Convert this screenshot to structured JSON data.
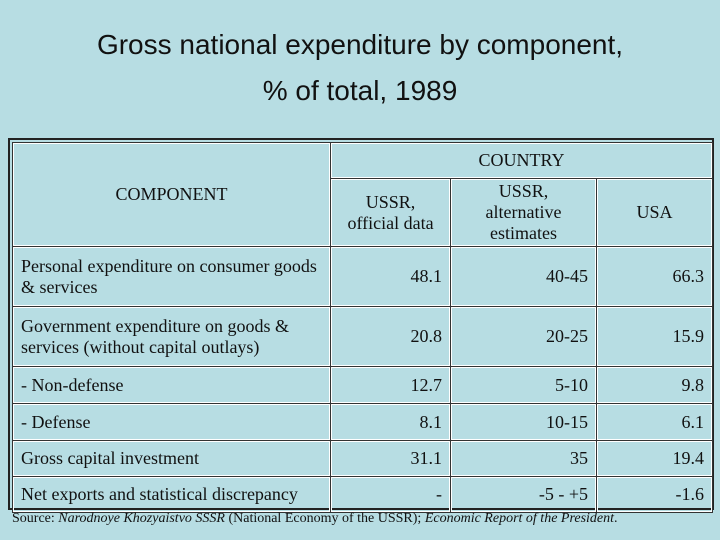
{
  "title": {
    "line1": "Gross national expenditure by component,",
    "line2": "% of total, 1989"
  },
  "table": {
    "country_header": "COUNTRY",
    "component_header": "COMPONENT",
    "columns": [
      "USSR, official data",
      "USSR, alternative estimates",
      "USA"
    ],
    "column_lines": [
      [
        "USSR,",
        "official data"
      ],
      [
        "USSR, alternative",
        "estimates"
      ],
      [
        "USA"
      ]
    ],
    "rows": [
      {
        "component": "Personal expenditure on consumer goods & services",
        "values": [
          "48.1",
          "40-45",
          "66.3"
        ]
      },
      {
        "component": "Government expenditure on goods & services (without capital outlays)",
        "values": [
          "20.8",
          "20-25",
          "15.9"
        ]
      },
      {
        "component": "- Non-defense",
        "values": [
          "12.7",
          "5-10",
          "9.8"
        ]
      },
      {
        "component": "- Defense",
        "values": [
          "8.1",
          "10-15",
          "6.1"
        ]
      },
      {
        "component": "Gross capital investment",
        "values": [
          "31.1",
          "35",
          "19.4"
        ]
      },
      {
        "component": "Net exports and statistical discrepancy",
        "values": [
          "-",
          "-5 - +5",
          "-1.6"
        ]
      }
    ]
  },
  "source": {
    "label": "Source: ",
    "ref1": "Narodnoye Khozyaistvo SSSR",
    "ref1_note": " (National Economy of the USSR); ",
    "ref2": "Economic Report of the President",
    "end": "."
  }
}
